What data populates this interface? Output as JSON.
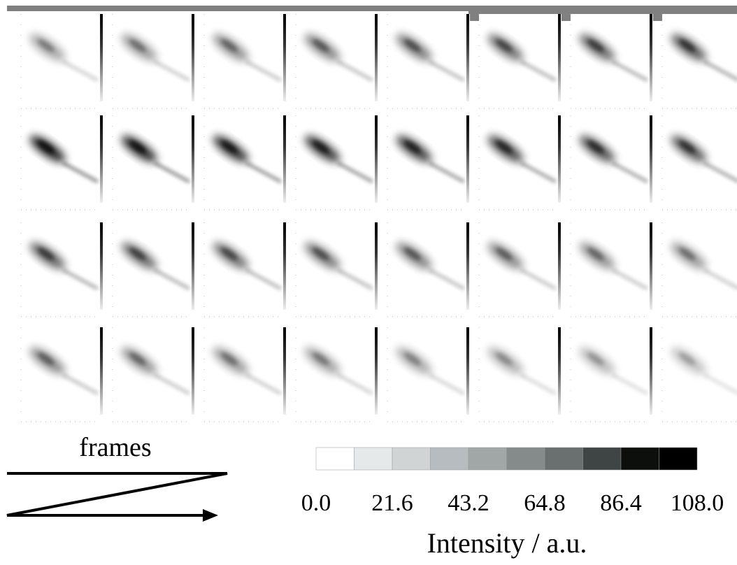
{
  "chart_data": {
    "type": "colorbar",
    "title": "Intensity / a.u.",
    "annotation": "frames",
    "colors": [
      "#ffffff",
      "#e6e9ea",
      "#d0d4d4",
      "#b6bcbf",
      "#a1a6a7",
      "#858b8b",
      "#6a7070",
      "#3f4545",
      "#0c0f0c",
      "#000000"
    ],
    "xlim": [
      0,
      108
    ],
    "xticks": [
      {
        "value": 0,
        "label": "0.0"
      },
      {
        "value": 21.6,
        "label": "21.6"
      },
      {
        "value": 43.2,
        "label": "43.2"
      },
      {
        "value": 64.8,
        "label": "64.8"
      },
      {
        "value": 86.4,
        "label": "86.4"
      },
      {
        "value": 108,
        "label": "108.0"
      }
    ]
  }
}
